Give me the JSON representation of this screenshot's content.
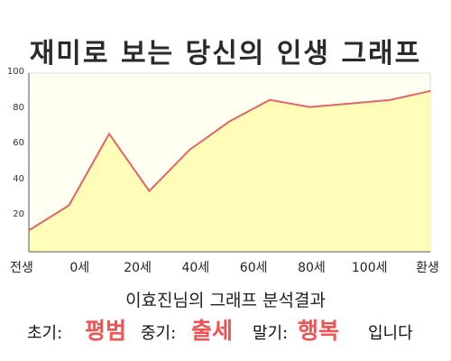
{
  "chart_data": {
    "type": "area",
    "title": "재미로 보는 당신의 인생 그래프",
    "x_labels": [
      "전생",
      "0세",
      "20세",
      "40세",
      "60세",
      "80세",
      "100세",
      "환생"
    ],
    "y_ticks": [
      20,
      40,
      60,
      80,
      100
    ],
    "ylim": [
      0,
      100
    ],
    "grid": false,
    "legend": "none",
    "series": [
      {
        "values": [
          12,
          26,
          66,
          34,
          57,
          73,
          85,
          81,
          83,
          85,
          90
        ]
      }
    ],
    "colors": {
      "line": "#e06666",
      "fill": "#fffdb8",
      "plot_bg": "#fffff2"
    }
  },
  "summary": {
    "text": "이효진님의 그래프 분석결과",
    "early_label": "초기:",
    "early_value": "평범",
    "middle_label": "중기:",
    "middle_value": "출세",
    "late_label": "말기:",
    "late_value": "행복",
    "ending": "입니다"
  }
}
